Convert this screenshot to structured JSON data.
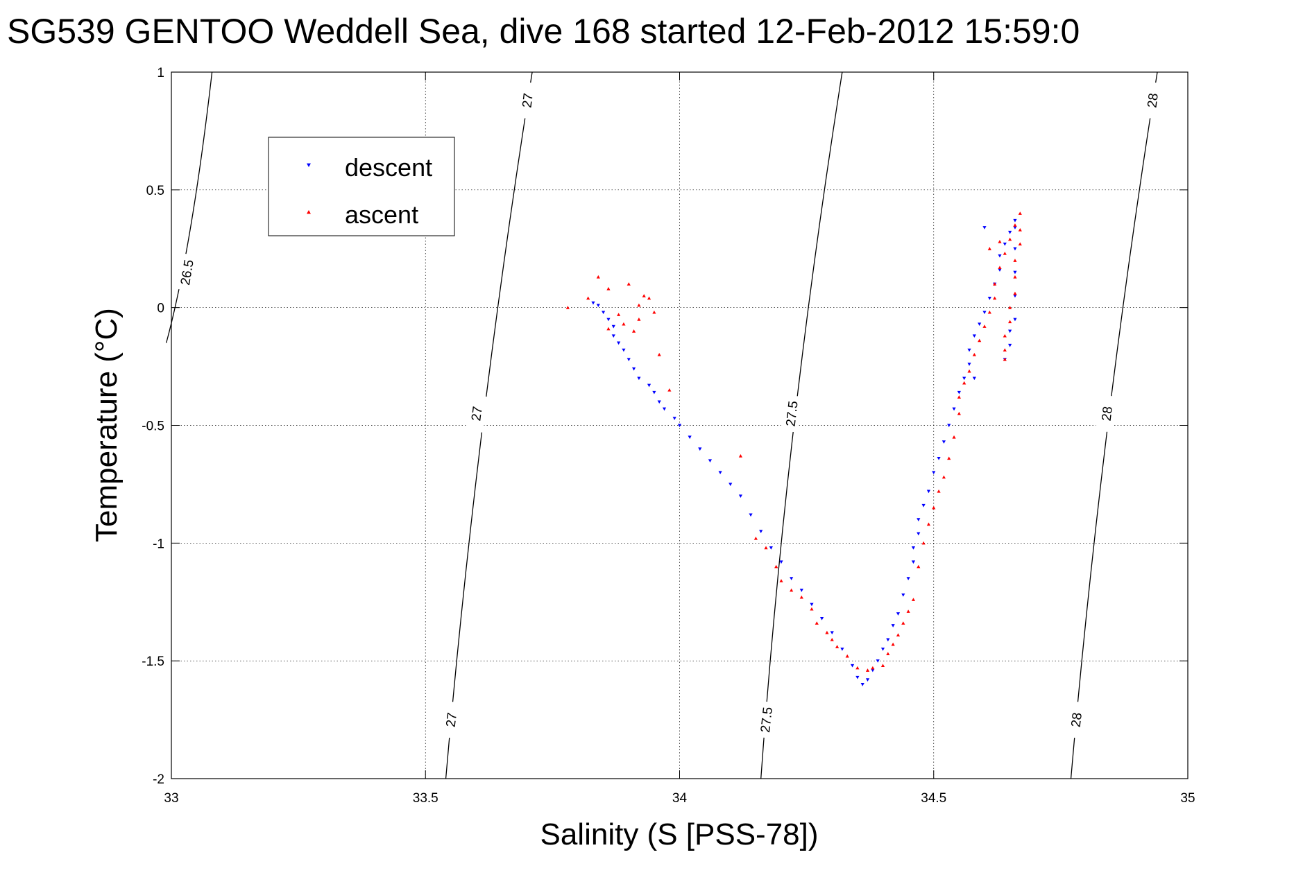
{
  "chart_data": {
    "type": "scatter",
    "title": "SG539 GENTOO Weddell Sea, dive 168 started 12-Feb-2012 15:59:0",
    "xlabel": "Salinity (S [PSS-78])",
    "ylabel": "Temperature (°C)",
    "xlim": [
      33,
      35
    ],
    "ylim": [
      -2,
      1
    ],
    "xticks": [
      33,
      33.5,
      34,
      34.5,
      35
    ],
    "xtick_labels": [
      "33",
      "33.5",
      "34",
      "34.5",
      "35"
    ],
    "yticks": [
      -2,
      -1.5,
      -1,
      -0.5,
      0,
      0.5,
      1
    ],
    "ytick_labels": [
      "-2",
      "-1.5",
      "-1",
      "-0.5",
      "0",
      "0.5",
      "1"
    ],
    "grid": true,
    "legend_position": "top-left",
    "contours": [
      {
        "level": "26.5",
        "points": [
          [
            32.99,
            -0.15
          ],
          [
            33.04,
            0.25
          ],
          [
            33.08,
            1.0
          ]
        ],
        "labels": [
          {
            "x": 33.03,
            "y": 0.15,
            "text": "26.5"
          }
        ]
      },
      {
        "level": "27",
        "points": [
          [
            33.54,
            -2.0
          ],
          [
            33.6,
            -0.5
          ],
          [
            33.71,
            1.0
          ]
        ],
        "labels": [
          {
            "x": 33.55,
            "y": -1.75,
            "text": "27"
          },
          {
            "x": 33.6,
            "y": -0.45,
            "text": "27"
          },
          {
            "x": 33.7,
            "y": 0.88,
            "text": "27"
          }
        ]
      },
      {
        "level": "27.5",
        "points": [
          [
            34.16,
            -2.0
          ],
          [
            34.21,
            -0.5
          ],
          [
            34.32,
            1.0
          ]
        ],
        "labels": [
          {
            "x": 34.17,
            "y": -1.75,
            "text": "27.5"
          },
          {
            "x": 34.22,
            "y": -0.45,
            "text": "27.5"
          }
        ]
      },
      {
        "level": "28",
        "points": [
          [
            34.77,
            -2.0
          ],
          [
            34.83,
            -0.5
          ],
          [
            34.94,
            1.0
          ]
        ],
        "labels": [
          {
            "x": 34.78,
            "y": -1.75,
            "text": "28"
          },
          {
            "x": 34.84,
            "y": -0.45,
            "text": "28"
          },
          {
            "x": 34.93,
            "y": 0.88,
            "text": "28"
          }
        ]
      }
    ],
    "series": [
      {
        "name": "descent",
        "color": "#0000ff",
        "marker": "triangle-down",
        "points": [
          [
            33.83,
            0.02
          ],
          [
            33.84,
            0.01
          ],
          [
            33.85,
            -0.02
          ],
          [
            33.86,
            -0.05
          ],
          [
            33.87,
            -0.08
          ],
          [
            33.87,
            -0.12
          ],
          [
            33.88,
            -0.15
          ],
          [
            33.89,
            -0.18
          ],
          [
            33.9,
            -0.22
          ],
          [
            33.91,
            -0.26
          ],
          [
            33.92,
            -0.3
          ],
          [
            33.94,
            -0.33
          ],
          [
            33.95,
            -0.36
          ],
          [
            33.96,
            -0.4
          ],
          [
            33.97,
            -0.43
          ],
          [
            33.99,
            -0.47
          ],
          [
            34.0,
            -0.5
          ],
          [
            34.02,
            -0.55
          ],
          [
            34.04,
            -0.6
          ],
          [
            34.06,
            -0.65
          ],
          [
            34.08,
            -0.7
          ],
          [
            34.1,
            -0.75
          ],
          [
            34.12,
            -0.8
          ],
          [
            34.14,
            -0.88
          ],
          [
            34.16,
            -0.95
          ],
          [
            34.18,
            -1.02
          ],
          [
            34.2,
            -1.08
          ],
          [
            34.22,
            -1.15
          ],
          [
            34.24,
            -1.2
          ],
          [
            34.26,
            -1.26
          ],
          [
            34.28,
            -1.32
          ],
          [
            34.3,
            -1.38
          ],
          [
            34.32,
            -1.45
          ],
          [
            34.34,
            -1.52
          ],
          [
            34.35,
            -1.57
          ],
          [
            34.36,
            -1.6
          ],
          [
            34.37,
            -1.58
          ],
          [
            34.38,
            -1.54
          ],
          [
            34.39,
            -1.5
          ],
          [
            34.4,
            -1.45
          ],
          [
            34.41,
            -1.41
          ],
          [
            34.42,
            -1.35
          ],
          [
            34.43,
            -1.3
          ],
          [
            34.44,
            -1.22
          ],
          [
            34.45,
            -1.15
          ],
          [
            34.46,
            -1.08
          ],
          [
            34.46,
            -1.02
          ],
          [
            34.47,
            -0.96
          ],
          [
            34.47,
            -0.9
          ],
          [
            34.48,
            -0.84
          ],
          [
            34.49,
            -0.78
          ],
          [
            34.5,
            -0.7
          ],
          [
            34.51,
            -0.64
          ],
          [
            34.52,
            -0.57
          ],
          [
            34.53,
            -0.5
          ],
          [
            34.54,
            -0.43
          ],
          [
            34.55,
            -0.36
          ],
          [
            34.56,
            -0.3
          ],
          [
            34.57,
            -0.24
          ],
          [
            34.57,
            -0.18
          ],
          [
            34.58,
            -0.12
          ],
          [
            34.59,
            -0.07
          ],
          [
            34.6,
            -0.02
          ],
          [
            34.61,
            0.04
          ],
          [
            34.62,
            0.1
          ],
          [
            34.63,
            0.16
          ],
          [
            34.63,
            0.22
          ],
          [
            34.64,
            0.27
          ],
          [
            34.65,
            0.32
          ],
          [
            34.66,
            0.37
          ],
          [
            34.66,
            0.34
          ],
          [
            34.66,
            0.25
          ],
          [
            34.66,
            0.15
          ],
          [
            34.66,
            0.05
          ],
          [
            34.66,
            -0.05
          ],
          [
            34.65,
            -0.1
          ],
          [
            34.65,
            -0.16
          ],
          [
            34.64,
            -0.22
          ],
          [
            34.6,
            0.34
          ],
          [
            34.58,
            -0.3
          ]
        ]
      },
      {
        "name": "ascent",
        "color": "#ff0000",
        "marker": "triangle-up",
        "points": [
          [
            33.78,
            0.0
          ],
          [
            33.82,
            0.04
          ],
          [
            33.84,
            0.13
          ],
          [
            33.86,
            0.08
          ],
          [
            33.88,
            -0.03
          ],
          [
            33.89,
            -0.07
          ],
          [
            33.86,
            -0.09
          ],
          [
            33.9,
            0.1
          ],
          [
            33.92,
            0.01
          ],
          [
            33.93,
            0.05
          ],
          [
            33.94,
            0.04
          ],
          [
            33.92,
            -0.05
          ],
          [
            33.95,
            -0.02
          ],
          [
            33.91,
            -0.1
          ],
          [
            33.96,
            -0.2
          ],
          [
            33.98,
            -0.35
          ],
          [
            34.12,
            -0.63
          ],
          [
            34.15,
            -0.98
          ],
          [
            34.17,
            -1.02
          ],
          [
            34.19,
            -1.1
          ],
          [
            34.2,
            -1.16
          ],
          [
            34.22,
            -1.2
          ],
          [
            34.24,
            -1.23
          ],
          [
            34.26,
            -1.28
          ],
          [
            34.27,
            -1.34
          ],
          [
            34.29,
            -1.38
          ],
          [
            34.3,
            -1.41
          ],
          [
            34.31,
            -1.44
          ],
          [
            34.33,
            -1.48
          ],
          [
            34.35,
            -1.53
          ],
          [
            34.37,
            -1.54
          ],
          [
            34.38,
            -1.53
          ],
          [
            34.4,
            -1.52
          ],
          [
            34.41,
            -1.47
          ],
          [
            34.42,
            -1.43
          ],
          [
            34.43,
            -1.39
          ],
          [
            34.44,
            -1.34
          ],
          [
            34.45,
            -1.29
          ],
          [
            34.46,
            -1.24
          ],
          [
            34.47,
            -1.1
          ],
          [
            34.48,
            -1.0
          ],
          [
            34.49,
            -0.92
          ],
          [
            34.5,
            -0.85
          ],
          [
            34.51,
            -0.78
          ],
          [
            34.52,
            -0.72
          ],
          [
            34.53,
            -0.64
          ],
          [
            34.54,
            -0.55
          ],
          [
            34.55,
            -0.45
          ],
          [
            34.55,
            -0.38
          ],
          [
            34.56,
            -0.32
          ],
          [
            34.57,
            -0.27
          ],
          [
            34.58,
            -0.2
          ],
          [
            34.59,
            -0.14
          ],
          [
            34.6,
            -0.08
          ],
          [
            34.61,
            -0.02
          ],
          [
            34.62,
            0.04
          ],
          [
            34.62,
            0.1
          ],
          [
            34.63,
            0.17
          ],
          [
            34.64,
            0.23
          ],
          [
            34.65,
            0.29
          ],
          [
            34.66,
            0.35
          ],
          [
            34.67,
            0.4
          ],
          [
            34.67,
            0.33
          ],
          [
            34.67,
            0.27
          ],
          [
            34.66,
            0.2
          ],
          [
            34.66,
            0.13
          ],
          [
            34.66,
            0.06
          ],
          [
            34.65,
            0.0
          ],
          [
            34.65,
            -0.06
          ],
          [
            34.64,
            -0.12
          ],
          [
            34.64,
            -0.18
          ],
          [
            34.64,
            -0.22
          ],
          [
            34.63,
            0.28
          ],
          [
            34.61,
            0.25
          ]
        ]
      }
    ]
  }
}
